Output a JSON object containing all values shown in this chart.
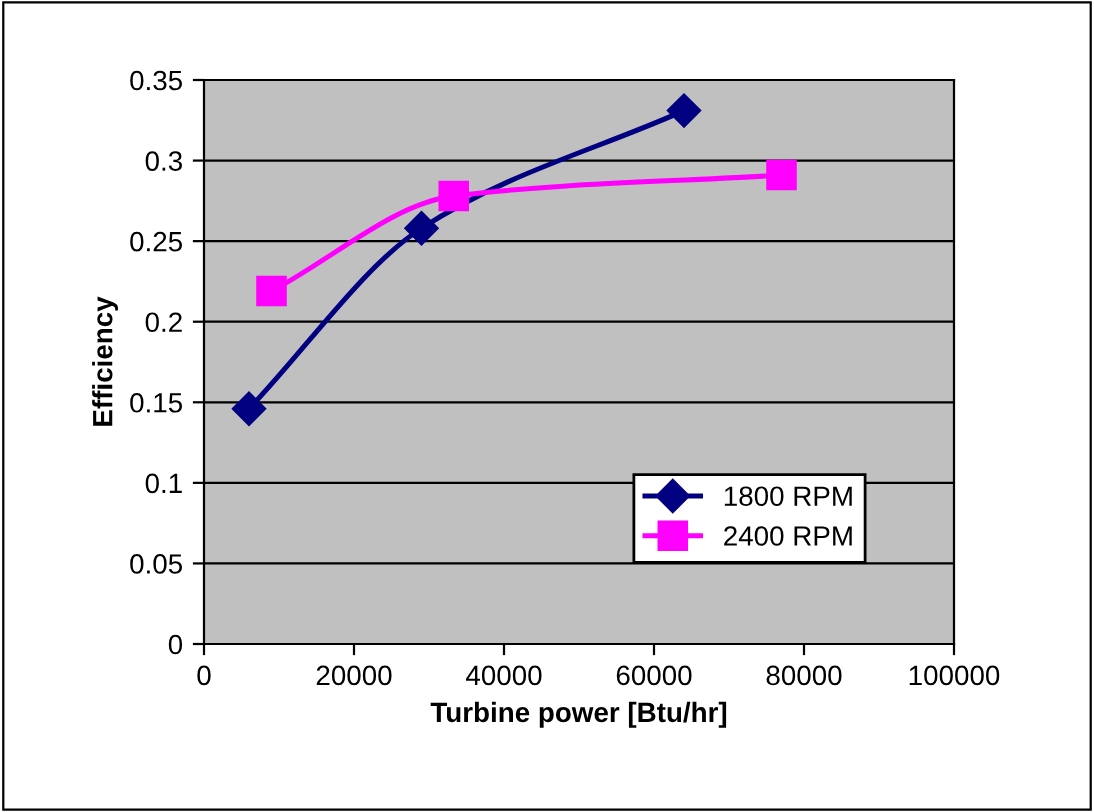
{
  "chart_data": {
    "type": "line",
    "xlabel": "Turbine power [Btu/hr]",
    "ylabel": "Efficiency",
    "series": [
      {
        "name": "1800 RPM",
        "color": "#000080",
        "marker": "diamond",
        "x": [
          6000,
          29000,
          64000
        ],
        "values": [
          0.146,
          0.258,
          0.331
        ]
      },
      {
        "name": "2400 RPM",
        "color": "#ff00ff",
        "marker": "square",
        "x": [
          9000,
          33300,
          77000
        ],
        "values": [
          0.219,
          0.278,
          0.291
        ]
      }
    ],
    "xlim": [
      0,
      100000
    ],
    "xticks": [
      0,
      20000,
      40000,
      60000,
      80000,
      100000
    ],
    "ylim": [
      0,
      0.35
    ],
    "yticks": [
      0,
      0.05,
      0.1,
      0.15,
      0.2,
      0.25,
      0.3,
      0.35
    ],
    "grid": "y",
    "legend": "bottom right",
    "line_style": "solid"
  }
}
